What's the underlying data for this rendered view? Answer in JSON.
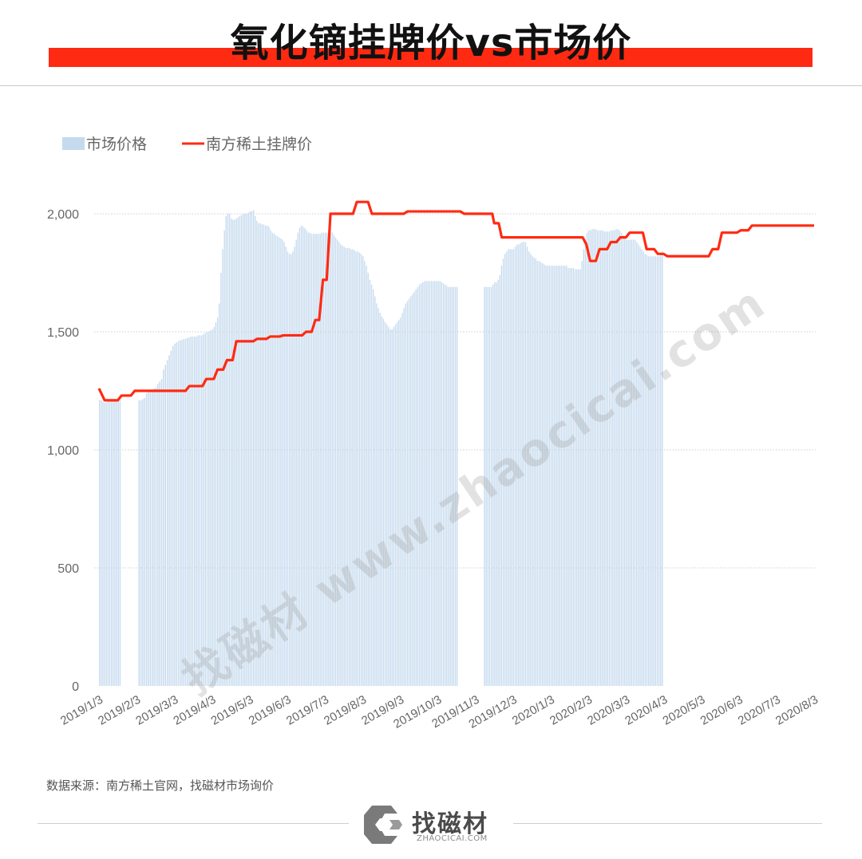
{
  "header": {
    "title": "氧化镝挂牌价vs市场价"
  },
  "source_note": "数据来源：南方稀土官网，找磁材市场询价",
  "watermark": "找磁材  www.zhaocicai.com",
  "logo": {
    "name": "找磁材",
    "sub": "ZHAOCICAI.COM"
  },
  "colors": {
    "bar": "#c5daee",
    "line": "#ff2a12",
    "title_bar": "#ff2a12"
  },
  "chart_data": {
    "type": "bar+line",
    "ylim": [
      0,
      2000
    ],
    "yticks": [
      0,
      500,
      1000,
      1500,
      2000
    ],
    "ytick_labels": [
      "0",
      "500",
      "1,000",
      "1,500",
      "2,000"
    ],
    "grid": true,
    "legend_position": "top-left",
    "x_labels": [
      "2019/1/3",
      "2019/2/3",
      "2019/3/3",
      "2019/4/3",
      "2019/5/3",
      "2019/6/3",
      "2019/7/3",
      "2019/8/3",
      "2019/9/3",
      "2019/10/3",
      "2019/11/3",
      "2019/12/3",
      "2020/1/3",
      "2020/2/3",
      "2020/3/3",
      "2020/4/3",
      "2020/5/3",
      "2020/6/3",
      "2020/7/3",
      "2020/8/3"
    ],
    "series": [
      {
        "name": "市场价格",
        "kind": "bar",
        "monthly": [
          [
            1210,
            1210,
            1205,
            1200,
            1200,
            1205,
            1210,
            1210,
            1210,
            1210,
            1210,
            1210,
            1210,
            null,
            null,
            null,
            null,
            null,
            null,
            null,
            null,
            null
          ],
          [
            null,
            1210,
            1210,
            1215,
            1220,
            1240,
            1245,
            1250,
            1255,
            1260,
            1265,
            1280,
            1290,
            1300,
            1340,
            1360,
            1380,
            1400,
            1420,
            1440
          ],
          [
            1450,
            1455,
            1460,
            1465,
            1465,
            1470,
            1470,
            1475,
            1475,
            1480,
            1480,
            1480,
            1480,
            1485,
            1485,
            1485,
            1490,
            1495,
            1500,
            1500,
            1505
          ],
          [
            1510,
            1520,
            1540,
            1560,
            1620,
            1750,
            1850,
            1930,
            1990,
            2000,
            2000,
            1980,
            1975,
            1975,
            1980,
            1985,
            1990,
            1995,
            2000,
            2000,
            2000,
            2005
          ],
          [
            2010,
            2010,
            2015,
            1990,
            1970,
            1960,
            1960,
            1955,
            1955,
            1950,
            1950,
            1945,
            1930,
            1920,
            1915,
            1910,
            1905,
            1900,
            1895,
            1890,
            1880,
            1860
          ],
          [
            1840,
            1830,
            1830,
            1840,
            1860,
            1890,
            1920,
            1940,
            1950,
            1945,
            1940,
            1930,
            1920,
            1920,
            1915,
            1915,
            1915,
            1915,
            1915,
            1915,
            1920,
            1920
          ],
          [
            1920,
            1920,
            1920,
            1920,
            1920,
            1910,
            1900,
            1890,
            1880,
            1870,
            1865,
            1860,
            1855,
            1855,
            1855,
            1850,
            1850,
            1845,
            1840,
            1840,
            1835,
            1830
          ],
          [
            1820,
            1800,
            1780,
            1750,
            1720,
            1700,
            1680,
            1650,
            1620,
            1600,
            1580,
            1565,
            1555,
            1540,
            1530,
            1520,
            1510,
            1510,
            1520,
            1530,
            1540,
            1550
          ],
          [
            1560,
            1580,
            1600,
            1620,
            1630,
            1640,
            1650,
            1660,
            1670,
            1680,
            1690,
            1700,
            1705,
            1710,
            1715,
            1715,
            1715,
            1715,
            1715,
            1715,
            1715,
            1715
          ],
          [
            1715,
            1715,
            1710,
            1705,
            1700,
            1695,
            1690,
            1690,
            1690,
            1690,
            1690,
            1690,
            null,
            null,
            null,
            null,
            null,
            null,
            null,
            null,
            null,
            null
          ],
          [
            null,
            null,
            null,
            null,
            null,
            1690,
            1690,
            1690,
            1690,
            1690,
            1700,
            1710,
            1710,
            1720,
            1740,
            1780,
            1810,
            1830,
            1840,
            1850,
            1850,
            1850
          ],
          [
            1850,
            1860,
            1870,
            1870,
            1875,
            1880,
            1880,
            1880,
            1860,
            1840,
            1830,
            1820,
            1815,
            1810,
            1800,
            1800,
            1795,
            1790,
            1785,
            1780,
            1780,
            1780
          ],
          [
            1780,
            1780,
            1780,
            1780,
            1780,
            1780,
            1780,
            1780,
            1780,
            1780,
            1770,
            1770,
            1770,
            1770,
            1765,
            1765,
            1765,
            1765,
            1800,
            1850,
            1890,
            1920
          ],
          [
            1930,
            1930,
            1935,
            1935,
            1935,
            1930,
            1930,
            1930,
            1930,
            1925,
            1925,
            1925,
            1925,
            1930,
            1930,
            1930,
            1935,
            1935,
            1930,
            1920,
            1910,
            1900
          ],
          [
            1890,
            1890,
            1890,
            1890,
            1890,
            1890,
            1880,
            1870,
            1860,
            1850,
            1840,
            1830,
            1825,
            1820,
            1820,
            1820,
            1820,
            1820,
            1820,
            1820,
            1835,
            1840
          ]
        ]
      },
      {
        "name": "南方稀土挂牌价",
        "kind": "step-line",
        "points": [
          [
            0,
            1260
          ],
          [
            0.15,
            1210
          ],
          [
            0.5,
            1210
          ],
          [
            0.6,
            1230
          ],
          [
            0.85,
            1230
          ],
          [
            0.95,
            1250
          ],
          [
            2.3,
            1250
          ],
          [
            2.4,
            1270
          ],
          [
            2.75,
            1270
          ],
          [
            2.85,
            1300
          ],
          [
            3.05,
            1300
          ],
          [
            3.15,
            1340
          ],
          [
            3.3,
            1340
          ],
          [
            3.4,
            1380
          ],
          [
            3.55,
            1380
          ],
          [
            3.65,
            1460
          ],
          [
            4.1,
            1460
          ],
          [
            4.2,
            1470
          ],
          [
            4.45,
            1470
          ],
          [
            4.55,
            1480
          ],
          [
            4.8,
            1480
          ],
          [
            4.9,
            1485
          ],
          [
            5.4,
            1485
          ],
          [
            5.5,
            1500
          ],
          [
            5.65,
            1500
          ],
          [
            5.75,
            1550
          ],
          [
            5.85,
            1550
          ],
          [
            5.95,
            1720
          ],
          [
            6.05,
            1720
          ],
          [
            6.15,
            2000
          ],
          [
            6.75,
            2000
          ],
          [
            6.85,
            2050
          ],
          [
            7.15,
            2050
          ],
          [
            7.25,
            2000
          ],
          [
            8.1,
            2000
          ],
          [
            8.2,
            2010
          ],
          [
            9.6,
            2010
          ],
          [
            9.7,
            2000
          ],
          [
            10.45,
            2000
          ],
          [
            10.5,
            1960
          ],
          [
            10.62,
            1960
          ],
          [
            10.7,
            1900
          ],
          [
            12.85,
            1900
          ],
          [
            12.95,
            1870
          ],
          [
            13.05,
            1800
          ],
          [
            13.2,
            1800
          ],
          [
            13.3,
            1850
          ],
          [
            13.5,
            1850
          ],
          [
            13.6,
            1880
          ],
          [
            13.75,
            1880
          ],
          [
            13.85,
            1900
          ],
          [
            14.0,
            1900
          ],
          [
            14.1,
            1920
          ],
          [
            14.45,
            1920
          ],
          [
            14.55,
            1850
          ],
          [
            14.75,
            1850
          ],
          [
            14.85,
            1830
          ],
          [
            15.0,
            1830
          ],
          [
            15.1,
            1820
          ],
          [
            16.2,
            1820
          ],
          [
            16.3,
            1850
          ],
          [
            16.45,
            1850
          ],
          [
            16.55,
            1920
          ],
          [
            16.95,
            1920
          ],
          [
            17.05,
            1930
          ],
          [
            17.25,
            1930
          ],
          [
            17.35,
            1950
          ],
          [
            19.0,
            1950
          ]
        ]
      }
    ]
  }
}
